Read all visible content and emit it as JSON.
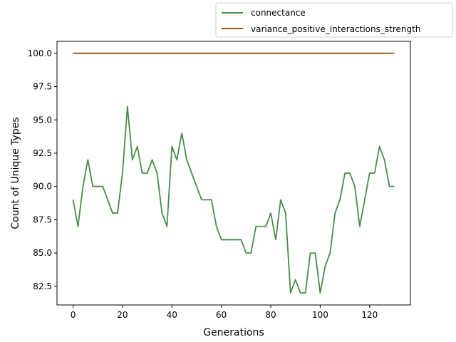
{
  "chart_data": {
    "type": "line",
    "xlabel": "Generations",
    "ylabel": "Count of Unique Types",
    "xlim": [
      -6.5,
      136.5
    ],
    "ylim": [
      81.1,
      100.9
    ],
    "xticks": [
      0,
      20,
      40,
      60,
      80,
      100,
      120
    ],
    "yticks": [
      82.5,
      85.0,
      87.5,
      90.0,
      92.5,
      95.0,
      97.5,
      100.0
    ],
    "xtick_labels": [
      "0",
      "20",
      "40",
      "60",
      "80",
      "100",
      "120"
    ],
    "ytick_labels": [
      "82.5",
      "85.0",
      "87.5",
      "90.0",
      "92.5",
      "95.0",
      "97.5",
      "100.0"
    ],
    "legend_position": "top-right, outside axes",
    "grid": false,
    "series": [
      {
        "name": "connectance",
        "color": "#4a8a4a",
        "x": [
          0,
          2,
          4,
          6,
          8,
          10,
          12,
          14,
          16,
          18,
          20,
          22,
          24,
          26,
          28,
          30,
          32,
          34,
          36,
          38,
          40,
          42,
          44,
          46,
          48,
          50,
          52,
          54,
          56,
          58,
          60,
          62,
          64,
          66,
          68,
          70,
          72,
          74,
          76,
          78,
          80,
          82,
          84,
          86,
          88,
          90,
          92,
          94,
          96,
          98,
          100,
          102,
          104,
          106,
          108,
          110,
          112,
          114,
          116,
          118,
          120,
          122,
          124,
          126,
          128,
          130
        ],
        "y": [
          89,
          87,
          90,
          92,
          90,
          90,
          90,
          89,
          88,
          88,
          91,
          96,
          92,
          93,
          91,
          91,
          92,
          91,
          88,
          87,
          93,
          92,
          94,
          92,
          91,
          90,
          89,
          89,
          89,
          87,
          86,
          86,
          86,
          86,
          86,
          85,
          85,
          87,
          87,
          87,
          88,
          86,
          89,
          88,
          82,
          83,
          82,
          82,
          85,
          85,
          82,
          84,
          85,
          88,
          89,
          91,
          91,
          90,
          87,
          89,
          91,
          91,
          93,
          92,
          90,
          90
        ]
      },
      {
        "name": "variance_positive_interactions_strength",
        "color": "#a0521c",
        "x": [
          0,
          130
        ],
        "y": [
          100,
          100
        ]
      }
    ]
  }
}
